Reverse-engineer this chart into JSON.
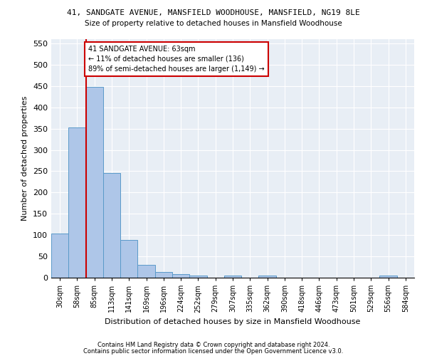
{
  "title1": "41, SANDGATE AVENUE, MANSFIELD WOODHOUSE, MANSFIELD, NG19 8LE",
  "title2": "Size of property relative to detached houses in Mansfield Woodhouse",
  "xlabel": "Distribution of detached houses by size in Mansfield Woodhouse",
  "ylabel": "Number of detached properties",
  "footnote1": "Contains HM Land Registry data © Crown copyright and database right 2024.",
  "footnote2": "Contains public sector information licensed under the Open Government Licence v3.0.",
  "bar_labels": [
    "30sqm",
    "58sqm",
    "85sqm",
    "113sqm",
    "141sqm",
    "169sqm",
    "196sqm",
    "224sqm",
    "252sqm",
    "279sqm",
    "307sqm",
    "335sqm",
    "362sqm",
    "390sqm",
    "418sqm",
    "446sqm",
    "473sqm",
    "501sqm",
    "529sqm",
    "556sqm",
    "584sqm"
  ],
  "bar_values": [
    103,
    353,
    448,
    246,
    88,
    30,
    14,
    9,
    5,
    0,
    5,
    0,
    5,
    0,
    0,
    0,
    0,
    0,
    0,
    5,
    0
  ],
  "bar_color": "#aec6e8",
  "bar_edge_color": "#5a9ac9",
  "ylim": [
    0,
    560
  ],
  "yticks": [
    0,
    50,
    100,
    150,
    200,
    250,
    300,
    350,
    400,
    450,
    500,
    550
  ],
  "annotation_title": "41 SANDGATE AVENUE: 63sqm",
  "annotation_line1": "← 11% of detached houses are smaller (136)",
  "annotation_line2": "89% of semi-detached houses are larger (1,149) →",
  "annotation_color": "#cc0000",
  "bg_color": "#e8eef5"
}
